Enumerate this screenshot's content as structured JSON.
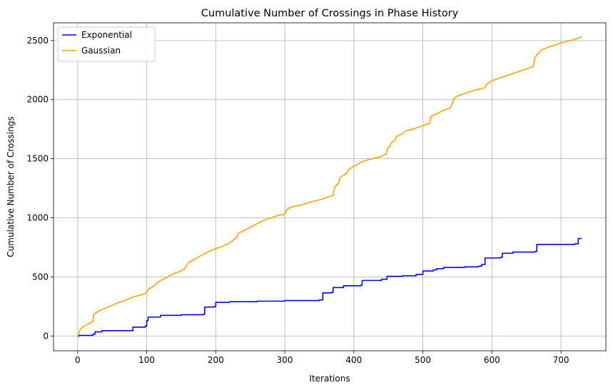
{
  "chart_data": {
    "type": "line",
    "title": "Cumulative Number of Crossings in Phase History",
    "xlabel": "Iterations",
    "ylabel": "Cumulative Number of Crossings",
    "xlim": [
      -35,
      765
    ],
    "ylim": [
      -125,
      2650
    ],
    "xticks": [
      0,
      100,
      200,
      300,
      400,
      500,
      600,
      700
    ],
    "yticks": [
      0,
      500,
      1000,
      1500,
      2000,
      2500
    ],
    "grid": true,
    "legend": "top-left",
    "series": [
      {
        "name": "Exponential",
        "color": "#0000ff",
        "step": true,
        "points": [
          [
            0,
            0
          ],
          [
            2,
            5
          ],
          [
            22,
            15
          ],
          [
            25,
            35
          ],
          [
            35,
            45
          ],
          [
            80,
            75
          ],
          [
            98,
            85
          ],
          [
            100,
            130
          ],
          [
            102,
            160
          ],
          [
            120,
            175
          ],
          [
            150,
            180
          ],
          [
            182,
            185
          ],
          [
            184,
            245
          ],
          [
            198,
            250
          ],
          [
            200,
            285
          ],
          [
            220,
            290
          ],
          [
            260,
            295
          ],
          [
            300,
            300
          ],
          [
            350,
            305
          ],
          [
            355,
            365
          ],
          [
            368,
            370
          ],
          [
            370,
            410
          ],
          [
            385,
            425
          ],
          [
            410,
            430
          ],
          [
            412,
            470
          ],
          [
            440,
            480
          ],
          [
            448,
            505
          ],
          [
            470,
            510
          ],
          [
            490,
            520
          ],
          [
            500,
            550
          ],
          [
            515,
            560
          ],
          [
            520,
            570
          ],
          [
            530,
            580
          ],
          [
            560,
            585
          ],
          [
            580,
            590
          ],
          [
            585,
            605
          ],
          [
            590,
            660
          ],
          [
            612,
            665
          ],
          [
            615,
            700
          ],
          [
            630,
            710
          ],
          [
            662,
            715
          ],
          [
            665,
            775
          ],
          [
            720,
            780
          ],
          [
            725,
            825
          ],
          [
            730,
            825
          ]
        ]
      },
      {
        "name": "Gaussian",
        "color": "#ffa500",
        "step": false,
        "points": [
          [
            0,
            0
          ],
          [
            2,
            30
          ],
          [
            4,
            60
          ],
          [
            8,
            80
          ],
          [
            15,
            100
          ],
          [
            20,
            115
          ],
          [
            22,
            125
          ],
          [
            23,
            180
          ],
          [
            25,
            190
          ],
          [
            30,
            210
          ],
          [
            40,
            235
          ],
          [
            50,
            260
          ],
          [
            60,
            285
          ],
          [
            70,
            305
          ],
          [
            80,
            330
          ],
          [
            90,
            345
          ],
          [
            98,
            360
          ],
          [
            100,
            370
          ],
          [
            103,
            400
          ],
          [
            110,
            420
          ],
          [
            113,
            440
          ],
          [
            120,
            470
          ],
          [
            130,
            500
          ],
          [
            140,
            530
          ],
          [
            150,
            550
          ],
          [
            155,
            570
          ],
          [
            158,
            600
          ],
          [
            160,
            620
          ],
          [
            170,
            650
          ],
          [
            180,
            685
          ],
          [
            190,
            715
          ],
          [
            200,
            740
          ],
          [
            210,
            760
          ],
          [
            220,
            785
          ],
          [
            225,
            810
          ],
          [
            230,
            830
          ],
          [
            233,
            870
          ],
          [
            240,
            890
          ],
          [
            250,
            920
          ],
          [
            260,
            950
          ],
          [
            270,
            980
          ],
          [
            280,
            1000
          ],
          [
            290,
            1020
          ],
          [
            300,
            1030
          ],
          [
            302,
            1060
          ],
          [
            305,
            1080
          ],
          [
            315,
            1100
          ],
          [
            325,
            1110
          ],
          [
            335,
            1130
          ],
          [
            345,
            1145
          ],
          [
            355,
            1160
          ],
          [
            365,
            1180
          ],
          [
            370,
            1190
          ],
          [
            372,
            1250
          ],
          [
            375,
            1280
          ],
          [
            378,
            1290
          ],
          [
            380,
            1340
          ],
          [
            390,
            1380
          ],
          [
            393,
            1410
          ],
          [
            398,
            1430
          ],
          [
            405,
            1450
          ],
          [
            410,
            1470
          ],
          [
            420,
            1490
          ],
          [
            430,
            1505
          ],
          [
            440,
            1520
          ],
          [
            447,
            1540
          ],
          [
            449,
            1590
          ],
          [
            452,
            1600
          ],
          [
            455,
            1640
          ],
          [
            460,
            1660
          ],
          [
            462,
            1690
          ],
          [
            470,
            1710
          ],
          [
            475,
            1735
          ],
          [
            485,
            1750
          ],
          [
            495,
            1770
          ],
          [
            505,
            1790
          ],
          [
            510,
            1800
          ],
          [
            512,
            1860
          ],
          [
            520,
            1880
          ],
          [
            530,
            1910
          ],
          [
            540,
            1930
          ],
          [
            542,
            1960
          ],
          [
            545,
            2010
          ],
          [
            550,
            2030
          ],
          [
            565,
            2060
          ],
          [
            575,
            2080
          ],
          [
            590,
            2100
          ],
          [
            592,
            2130
          ],
          [
            600,
            2160
          ],
          [
            615,
            2190
          ],
          [
            625,
            2210
          ],
          [
            640,
            2240
          ],
          [
            650,
            2260
          ],
          [
            660,
            2280
          ],
          [
            662,
            2350
          ],
          [
            665,
            2380
          ],
          [
            672,
            2420
          ],
          [
            680,
            2440
          ],
          [
            690,
            2460
          ],
          [
            700,
            2480
          ],
          [
            710,
            2495
          ],
          [
            720,
            2510
          ],
          [
            730,
            2530
          ]
        ]
      }
    ]
  }
}
